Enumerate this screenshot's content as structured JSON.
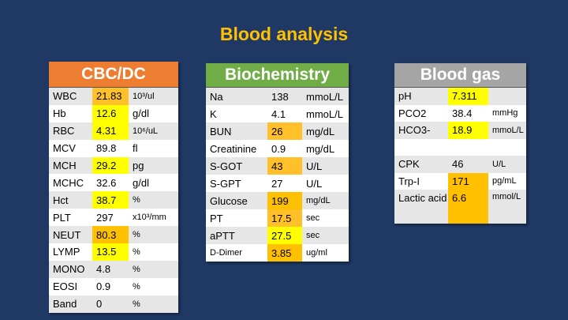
{
  "title": "Blood analysis",
  "colors": {
    "background": "#1f3864",
    "title": "#ffc000",
    "cbc_header": "#ed7d31",
    "bio_header": "#70ad47",
    "gas_header": "#a5a5a5",
    "highlight_yellow": "#ffff00",
    "highlight_orange": "#ffc000"
  },
  "tables": [
    {
      "id": "cbc",
      "header": "CBC/DC",
      "cols": [
        55,
        46,
        63
      ],
      "rows": [
        {
          "label": "WBC",
          "value": "21.83",
          "unit": "10³/ul",
          "hl": "lo"
        },
        {
          "label": "Hb",
          "value": "12.6",
          "unit": "g/dl",
          "hl": "y"
        },
        {
          "label": "RBC",
          "value": "4.31",
          "unit": "10⁶/uL",
          "hl": "y"
        },
        {
          "label": "MCV",
          "value": "89.8",
          "unit": "fl",
          "hl": ""
        },
        {
          "label": "MCH",
          "value": "29.2",
          "unit": "pg",
          "hl": "y"
        },
        {
          "label": "MCHC",
          "value": "32.6",
          "unit": "g/dl",
          "hl": ""
        },
        {
          "label": "Hct",
          "value": "38.7",
          "unit": "%",
          "hl": "y"
        },
        {
          "label": "PLT",
          "value": "297",
          "unit": "x10³/mm",
          "hl": ""
        },
        {
          "label": "NEUT",
          "value": "80.3",
          "unit": "%",
          "hl": "o"
        },
        {
          "label": "LYMP",
          "value": "13.5",
          "unit": "%",
          "hl": "y"
        },
        {
          "label": "MONO",
          "value": "4.8",
          "unit": "%",
          "hl": ""
        },
        {
          "label": "EOSI",
          "value": "0.9",
          "unit": "%",
          "hl": ""
        },
        {
          "label": "Band",
          "value": "0",
          "unit": "%",
          "hl": ""
        }
      ]
    },
    {
      "id": "bio",
      "header": "Biochemistry",
      "cols": [
        78,
        44,
        59
      ],
      "rows": [
        {
          "label": "Na",
          "value": "138",
          "unit": "mmoL/L",
          "hl": "",
          "big": true
        },
        {
          "label": "K",
          "value": "4.1",
          "unit": "mmoL/L",
          "hl": "",
          "big": true
        },
        {
          "label": "BUN",
          "value": "26",
          "unit": "mg/dL",
          "hl": "lo",
          "big": true
        },
        {
          "label": "Creatinine",
          "value": "0.9",
          "unit": "mg/dL",
          "hl": "",
          "big": true
        },
        {
          "label": "S-GOT",
          "value": "43",
          "unit": "U/L",
          "hl": "lo",
          "big": true
        },
        {
          "label": "S-GPT",
          "value": "27",
          "unit": "U/L",
          "hl": "",
          "big": true
        },
        {
          "label": "Glucose",
          "value": "199",
          "unit": "mg/dL",
          "hl": "o"
        },
        {
          "label": "PT",
          "value": "17.5",
          "unit": "sec",
          "hl": "lo"
        },
        {
          "label": "aPTT",
          "value": "27.5",
          "unit": "sec",
          "hl": "y"
        },
        {
          "label": "D-Dimer",
          "value": "3.85",
          "unit": "ug/ml",
          "hl": "o",
          "small": true
        }
      ]
    },
    {
      "id": "gas",
      "header": "Blood gas",
      "cols": [
        68,
        51,
        48
      ],
      "rows": [
        {
          "label": "pH",
          "value": "7.311",
          "unit": "",
          "hl": "y"
        },
        {
          "label": "PCO2",
          "value": "38.4",
          "unit": "mmHg",
          "hl": ""
        },
        {
          "label": "HCO3-",
          "value": "18.9",
          "unit": "mmoL/L",
          "hl": "y"
        },
        {
          "label": "",
          "value": "",
          "unit": "",
          "hl": ""
        },
        {
          "label": "CPK",
          "value": "46",
          "unit": "U/L",
          "hl": ""
        },
        {
          "label": "Trp-I",
          "value": "171",
          "unit": "pg/mL",
          "hl": "o"
        },
        {
          "label": "Lactic acid",
          "value": "6.6",
          "unit": "mmol/L",
          "hl": "o",
          "tall": true
        }
      ]
    }
  ]
}
